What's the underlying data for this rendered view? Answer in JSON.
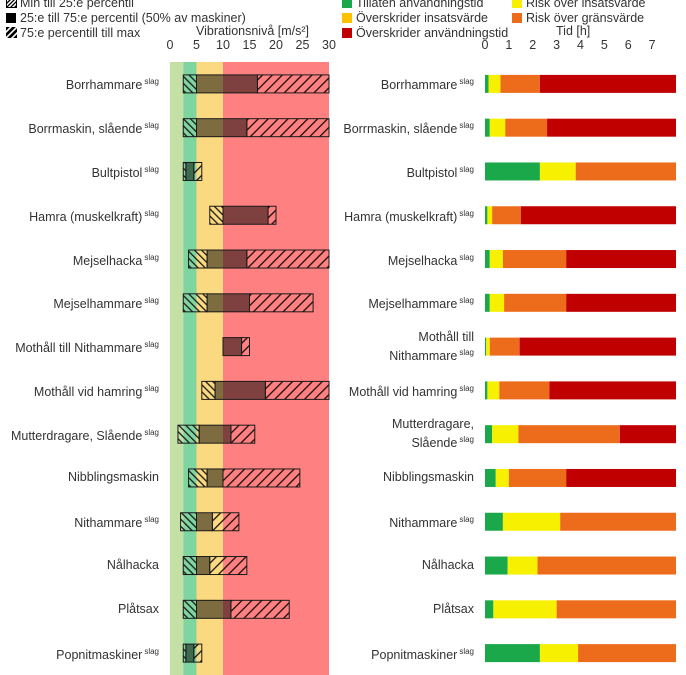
{
  "legend_left": [
    {
      "label": "Min till 25:e percentil",
      "icon": "hatch-dense-icon"
    },
    {
      "label": "25:e till 75:e percentil (50% av maskiner)",
      "icon": "solid-square-icon"
    },
    {
      "label": "75:e percentill till max",
      "icon": "hatch-sparse-icon"
    }
  ],
  "legend_right": [
    {
      "label": "Tillåten användningstid",
      "color": "#1aa84a"
    },
    {
      "label": "Risk över insatsvärde",
      "color": "#f7f000"
    },
    {
      "label": "Överskrider insatsvärde",
      "color": "#ffc000"
    },
    {
      "label": "Risk över gränsvärde",
      "color": "#ed6c1c"
    },
    {
      "label": "Överskrider användningstid",
      "color": "#c00000"
    }
  ],
  "tag": "slag",
  "chart_data": [
    {
      "type": "bar",
      "xlabel": "Vibrationsnivå [m/s²]",
      "xlim": [
        0,
        30
      ],
      "xticks": [
        0,
        5,
        10,
        15,
        20,
        25,
        30
      ],
      "zones": [
        {
          "from": 0,
          "to": 2.5,
          "color": "#c5e0a5"
        },
        {
          "from": 2.5,
          "to": 5,
          "color": "#7fd5a0"
        },
        {
          "from": 5,
          "to": 10,
          "color": "#fbd980"
        },
        {
          "from": 10,
          "to": 30,
          "color": "#ff8080"
        }
      ],
      "series_names": [
        "Min till 25:e percentil",
        "25:e till 75:e percentil (50% av maskiner)",
        "75:e percentill till max"
      ],
      "categories": [
        "Borrhammare",
        "Borrmaskin, slående",
        "Bultpistol",
        "Hamra (muskelkraft)",
        "Mejselhacka",
        "Mejselhammare",
        "Mothåll till Nithammare",
        "Mothåll vid hamring",
        "Mutterdragare, Slående",
        "Nibblingsmaskin",
        "Nithammare",
        "Nålhacka",
        "Plåtsax",
        "Popnitmaskiner"
      ],
      "tagged": [
        true,
        true,
        true,
        true,
        true,
        true,
        true,
        true,
        true,
        false,
        true,
        false,
        false,
        true
      ],
      "rows": [
        {
          "min": 2.5,
          "q1": 5,
          "q3": 16.5,
          "max": 30
        },
        {
          "min": 2.5,
          "q1": 5,
          "q3": 14.5,
          "max": 30
        },
        {
          "min": 2.5,
          "q1": 3,
          "q3": 4.5,
          "max": 6
        },
        {
          "min": 7.5,
          "q1": 10,
          "q3": 18.5,
          "max": 20
        },
        {
          "min": 3.5,
          "q1": 7,
          "q3": 14.5,
          "max": 30
        },
        {
          "min": 2.5,
          "q1": 7,
          "q3": 15,
          "max": 27
        },
        {
          "min": 10,
          "q1": 10,
          "q3": 13.5,
          "max": 15
        },
        {
          "min": 6,
          "q1": 8.5,
          "q3": 18,
          "max": 30
        },
        {
          "min": 1.5,
          "q1": 5.5,
          "q3": 11.5,
          "max": 16
        },
        {
          "min": 3.5,
          "q1": 7,
          "q3": 10,
          "max": 24.5
        },
        {
          "min": 2,
          "q1": 5,
          "q3": 8,
          "max": 13
        },
        {
          "min": 2.5,
          "q1": 5,
          "q3": 7.5,
          "max": 14.5
        },
        {
          "min": 2.5,
          "q1": 5,
          "q3": 11.5,
          "max": 22.5
        },
        {
          "min": 2.5,
          "q1": 3,
          "q3": 4.5,
          "max": 6
        }
      ]
    },
    {
      "type": "bar",
      "stacked": true,
      "orientation": "horizontal",
      "xlabel": "Tid [h]",
      "xlim": [
        0,
        8
      ],
      "xticks": [
        0,
        1,
        2,
        3,
        4,
        5,
        6,
        7
      ],
      "series_names": [
        "Tillåten användningstid",
        "Risk över insatsvärde",
        "Överskrider insatsvärde",
        "Risk över gränsvärde",
        "Överskrider användningstid"
      ],
      "categories": [
        "Borrhammare",
        "Borrmaskin, slående",
        "Bultpistol",
        "Hamra (muskelkraft)",
        "Mejselhacka",
        "Mejselhammare",
        "Mothåll till Nithammare",
        "Mothåll vid hamring",
        "Mutterdragare, Slående",
        "Nibblingsmaskin",
        "Nithammare",
        "Nålhacka",
        "Plåtsax",
        "Popnitmaskiner"
      ],
      "tagged": [
        true,
        true,
        true,
        true,
        true,
        true,
        true,
        true,
        true,
        false,
        true,
        false,
        false,
        true
      ],
      "values": [
        [
          0.15,
          0.5,
          0,
          1.65,
          5.7
        ],
        [
          0.2,
          0.65,
          0,
          1.75,
          5.4
        ],
        [
          2.3,
          1.5,
          0,
          4.2,
          0
        ],
        [
          0.1,
          0.2,
          0,
          1.2,
          6.5
        ],
        [
          0.2,
          0.55,
          0,
          2.65,
          4.6
        ],
        [
          0.2,
          0.6,
          0,
          2.6,
          4.6
        ],
        [
          0.05,
          0.15,
          0,
          1.25,
          6.55
        ],
        [
          0.1,
          0.5,
          0,
          2.1,
          5.3
        ],
        [
          0.3,
          1.1,
          0,
          4.25,
          2.35
        ],
        [
          0.45,
          0.55,
          0,
          2.4,
          4.6
        ],
        [
          0.75,
          2.4,
          0,
          4.85,
          0
        ],
        [
          0.95,
          1.25,
          0,
          5.8,
          0
        ],
        [
          0.35,
          2.65,
          0,
          5.0,
          0
        ],
        [
          2.3,
          1.6,
          0,
          4.1,
          0
        ]
      ]
    }
  ]
}
